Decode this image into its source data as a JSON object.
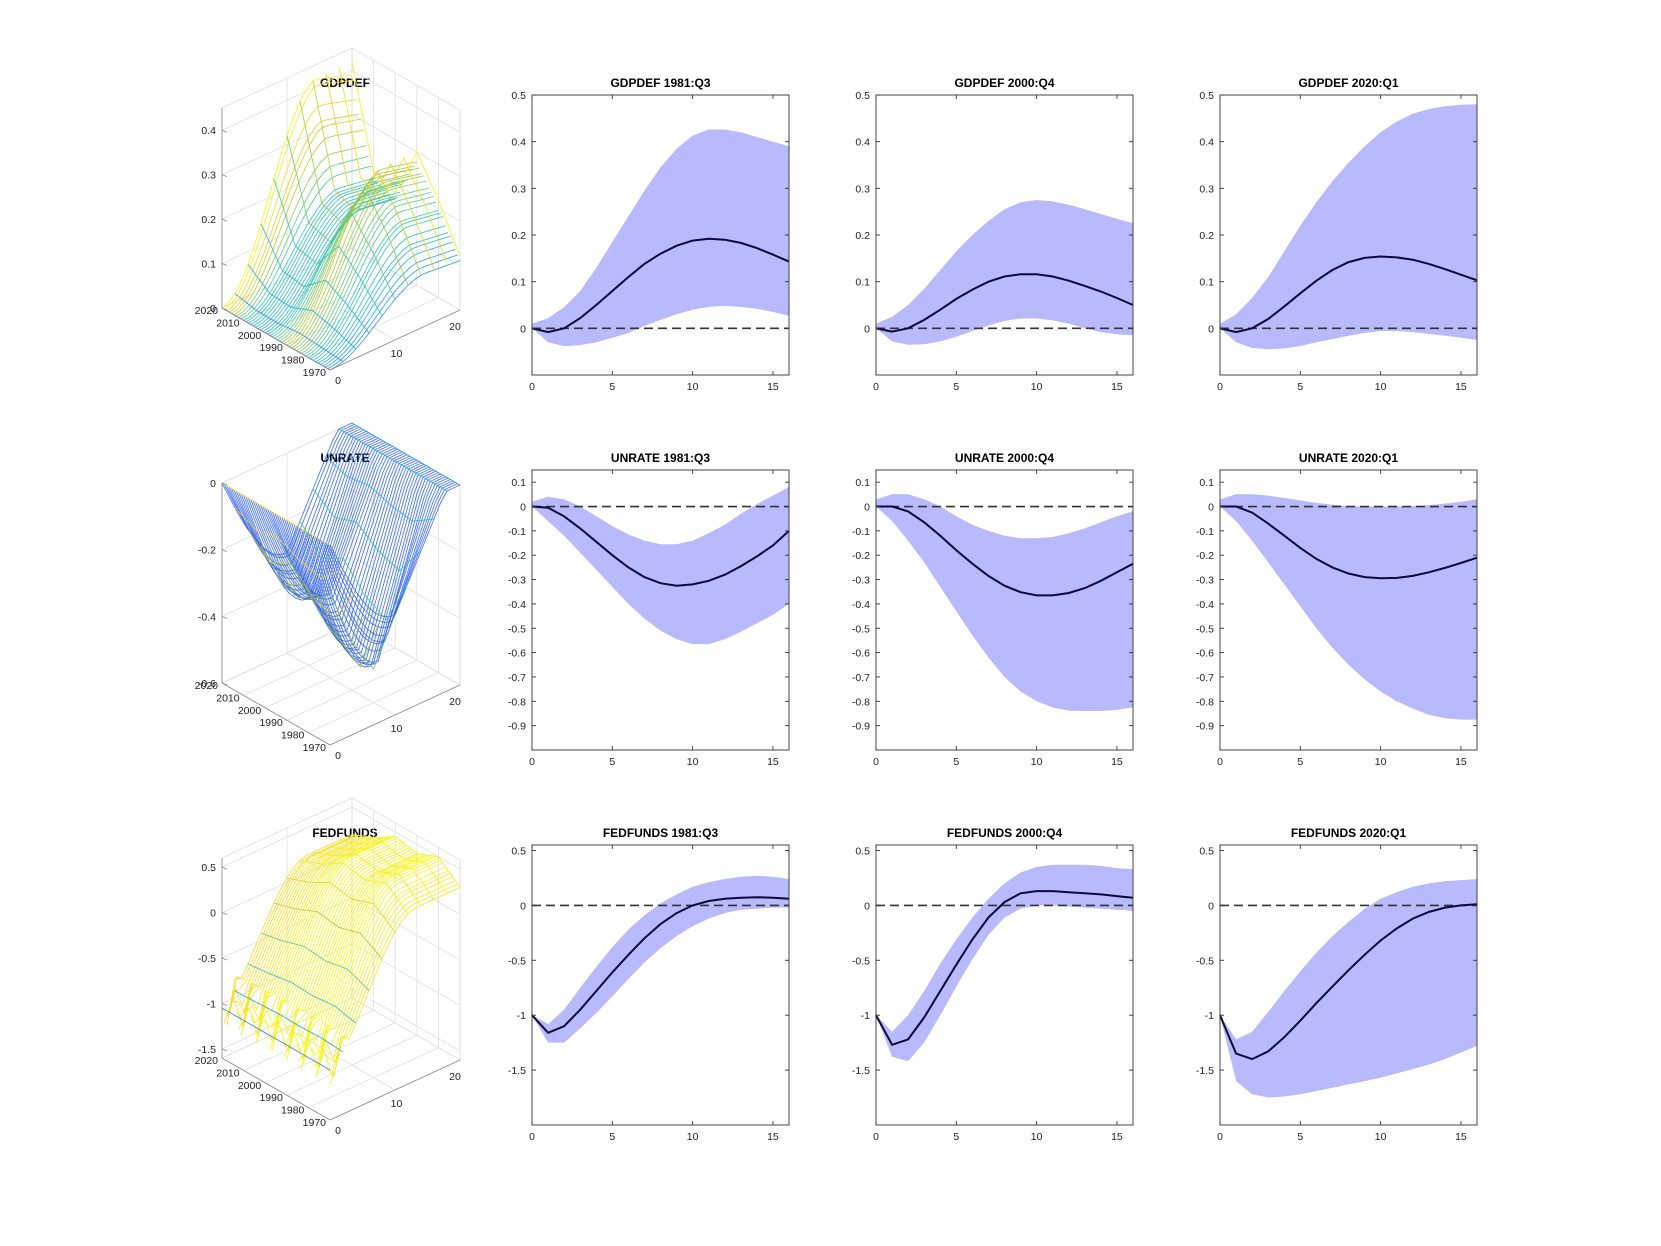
{
  "chart_data": [
    {
      "type": "surface",
      "panel": "3d",
      "title": "GDPDEF",
      "zticks": [
        "0",
        "0.1",
        "0.2",
        "0.3",
        "0.4"
      ],
      "zlim": [
        0,
        0.45
      ],
      "year_ticks": [
        "2020",
        "2010",
        "2000",
        "1990",
        "1980",
        "1970"
      ],
      "horizon_ticks": [
        "0",
        "10",
        "20"
      ],
      "description_peak_by_period": [
        0.12,
        0.22,
        0.3,
        0.18,
        0.2,
        0.42
      ]
    },
    {
      "type": "area",
      "title": "GDPDEF 1981:Q3",
      "x": [
        0,
        1,
        2,
        3,
        4,
        5,
        6,
        7,
        8,
        9,
        10,
        11,
        12,
        13,
        14,
        15,
        16
      ],
      "median": [
        0,
        -0.008,
        0.0,
        0.022,
        0.05,
        0.08,
        0.11,
        0.138,
        0.16,
        0.177,
        0.188,
        0.192,
        0.19,
        0.183,
        0.172,
        0.158,
        0.143
      ],
      "lower": [
        0,
        -0.03,
        -0.038,
        -0.036,
        -0.03,
        -0.02,
        -0.01,
        0.005,
        0.018,
        0.03,
        0.04,
        0.046,
        0.048,
        0.046,
        0.042,
        0.035,
        0.027
      ],
      "upper": [
        0.01,
        0.022,
        0.045,
        0.08,
        0.13,
        0.185,
        0.24,
        0.295,
        0.345,
        0.385,
        0.413,
        0.426,
        0.426,
        0.42,
        0.41,
        0.4,
        0.39
      ],
      "ylim": [
        -0.1,
        0.5
      ],
      "xlim": [
        0,
        16
      ],
      "yticks": [
        "0",
        "0.1",
        "0.2",
        "0.3",
        "0.4",
        "0.5"
      ],
      "xticks": [
        "0",
        "5",
        "10",
        "15"
      ]
    },
    {
      "type": "area",
      "title": "GDPDEF 2000:Q4",
      "x": [
        0,
        1,
        2,
        3,
        4,
        5,
        6,
        7,
        8,
        9,
        10,
        11,
        12,
        13,
        14,
        15,
        16
      ],
      "median": [
        0,
        -0.007,
        0.0,
        0.018,
        0.04,
        0.063,
        0.083,
        0.1,
        0.111,
        0.116,
        0.116,
        0.111,
        0.102,
        0.091,
        0.079,
        0.065,
        0.05
      ],
      "lower": [
        0,
        -0.028,
        -0.035,
        -0.034,
        -0.028,
        -0.018,
        -0.006,
        0.006,
        0.016,
        0.021,
        0.021,
        0.017,
        0.01,
        0.0,
        -0.008,
        -0.013,
        -0.015
      ],
      "upper": [
        0.01,
        0.025,
        0.05,
        0.085,
        0.125,
        0.165,
        0.2,
        0.23,
        0.255,
        0.27,
        0.275,
        0.272,
        0.265,
        0.255,
        0.245,
        0.235,
        0.225
      ],
      "ylim": [
        -0.1,
        0.5
      ],
      "xlim": [
        0,
        16
      ],
      "yticks": [
        "0",
        "0.1",
        "0.2",
        "0.3",
        "0.4",
        "0.5"
      ],
      "xticks": [
        "0",
        "5",
        "10",
        "15"
      ]
    },
    {
      "type": "area",
      "title": "GDPDEF 2020:Q1",
      "x": [
        0,
        1,
        2,
        3,
        4,
        5,
        6,
        7,
        8,
        9,
        10,
        11,
        12,
        13,
        14,
        15,
        16
      ],
      "median": [
        0,
        -0.008,
        0.0,
        0.02,
        0.047,
        0.075,
        0.102,
        0.125,
        0.142,
        0.151,
        0.154,
        0.152,
        0.147,
        0.138,
        0.127,
        0.115,
        0.103
      ],
      "lower": [
        0,
        -0.03,
        -0.042,
        -0.045,
        -0.043,
        -0.038,
        -0.03,
        -0.023,
        -0.016,
        -0.01,
        -0.006,
        -0.006,
        -0.008,
        -0.012,
        -0.016,
        -0.02,
        -0.025
      ],
      "upper": [
        0.01,
        0.03,
        0.065,
        0.11,
        0.165,
        0.22,
        0.27,
        0.315,
        0.355,
        0.39,
        0.42,
        0.443,
        0.46,
        0.47,
        0.476,
        0.479,
        0.48
      ],
      "ylim": [
        -0.1,
        0.5
      ],
      "xlim": [
        0,
        16
      ],
      "yticks": [
        "0",
        "0.1",
        "0.2",
        "0.3",
        "0.4",
        "0.5"
      ],
      "xticks": [
        "0",
        "5",
        "10",
        "15"
      ]
    },
    {
      "type": "surface",
      "panel": "3d",
      "title": "UNRATE",
      "zticks": [
        "-0.6",
        "-0.4",
        "-0.2",
        "0"
      ],
      "zlim": [
        -0.6,
        0
      ],
      "year_ticks": [
        "2020",
        "2010",
        "2000",
        "1990",
        "1980",
        "1970"
      ],
      "horizon_ticks": [
        "0",
        "10",
        "20"
      ],
      "description_peak_by_period": [
        -0.3,
        -0.5,
        -0.45,
        -0.35,
        -0.4,
        -0.3
      ]
    },
    {
      "type": "area",
      "title": "UNRATE 1981:Q3",
      "x": [
        0,
        1,
        2,
        3,
        4,
        5,
        6,
        7,
        8,
        9,
        10,
        11,
        12,
        13,
        14,
        15,
        16
      ],
      "median": [
        0,
        -0.005,
        -0.04,
        -0.09,
        -0.145,
        -0.2,
        -0.25,
        -0.29,
        -0.315,
        -0.325,
        -0.32,
        -0.305,
        -0.28,
        -0.245,
        -0.205,
        -0.16,
        -0.1
      ],
      "lower": [
        0,
        -0.06,
        -0.12,
        -0.19,
        -0.26,
        -0.33,
        -0.4,
        -0.46,
        -0.51,
        -0.545,
        -0.565,
        -0.565,
        -0.545,
        -0.515,
        -0.48,
        -0.445,
        -0.4
      ],
      "upper": [
        0.02,
        0.04,
        0.03,
        0.0,
        -0.04,
        -0.08,
        -0.115,
        -0.14,
        -0.155,
        -0.155,
        -0.14,
        -0.11,
        -0.075,
        -0.03,
        0.01,
        0.045,
        0.08
      ],
      "ylim": [
        -1.0,
        0.15
      ],
      "xlim": [
        0,
        16
      ],
      "yticks": [
        "0.1",
        "0",
        "-0.1",
        "-0.2",
        "-0.3",
        "-0.4",
        "-0.5",
        "-0.6",
        "-0.7",
        "-0.8",
        "-0.9"
      ],
      "xticks": [
        "0",
        "5",
        "10",
        "15"
      ]
    },
    {
      "type": "area",
      "title": "UNRATE 2000:Q4",
      "x": [
        0,
        1,
        2,
        3,
        4,
        5,
        6,
        7,
        8,
        9,
        10,
        11,
        12,
        13,
        14,
        15,
        16
      ],
      "median": [
        0,
        0.0,
        -0.02,
        -0.065,
        -0.12,
        -0.18,
        -0.235,
        -0.285,
        -0.325,
        -0.352,
        -0.365,
        -0.365,
        -0.355,
        -0.335,
        -0.305,
        -0.27,
        -0.235
      ],
      "lower": [
        0,
        -0.06,
        -0.14,
        -0.23,
        -0.33,
        -0.43,
        -0.53,
        -0.62,
        -0.7,
        -0.76,
        -0.8,
        -0.825,
        -0.838,
        -0.84,
        -0.84,
        -0.835,
        -0.825
      ],
      "upper": [
        0.03,
        0.05,
        0.05,
        0.03,
        0.0,
        -0.04,
        -0.075,
        -0.1,
        -0.12,
        -0.13,
        -0.13,
        -0.125,
        -0.11,
        -0.09,
        -0.065,
        -0.04,
        -0.02
      ],
      "ylim": [
        -1.0,
        0.15
      ],
      "xlim": [
        0,
        16
      ],
      "yticks": [
        "0.1",
        "0",
        "-0.1",
        "-0.2",
        "-0.3",
        "-0.4",
        "-0.5",
        "-0.6",
        "-0.7",
        "-0.8",
        "-0.9"
      ],
      "xticks": [
        "0",
        "5",
        "10",
        "15"
      ]
    },
    {
      "type": "area",
      "title": "UNRATE 2020:Q1",
      "x": [
        0,
        1,
        2,
        3,
        4,
        5,
        6,
        7,
        8,
        9,
        10,
        11,
        12,
        13,
        14,
        15,
        16
      ],
      "median": [
        0,
        0.0,
        -0.025,
        -0.07,
        -0.12,
        -0.17,
        -0.215,
        -0.25,
        -0.275,
        -0.29,
        -0.295,
        -0.293,
        -0.285,
        -0.27,
        -0.252,
        -0.232,
        -0.21
      ],
      "lower": [
        0,
        -0.06,
        -0.14,
        -0.23,
        -0.32,
        -0.41,
        -0.5,
        -0.58,
        -0.65,
        -0.71,
        -0.76,
        -0.8,
        -0.83,
        -0.855,
        -0.87,
        -0.875,
        -0.875
      ],
      "upper": [
        0.03,
        0.05,
        0.05,
        0.045,
        0.035,
        0.025,
        0.015,
        0.007,
        0.002,
        0.0,
        0.0,
        0.0,
        0.002,
        0.006,
        0.012,
        0.02,
        0.03
      ],
      "ylim": [
        -1.0,
        0.15
      ],
      "xlim": [
        0,
        16
      ],
      "yticks": [
        "0.1",
        "0",
        "-0.1",
        "-0.2",
        "-0.3",
        "-0.4",
        "-0.5",
        "-0.6",
        "-0.7",
        "-0.8",
        "-0.9"
      ],
      "xticks": [
        "0",
        "5",
        "10",
        "15"
      ]
    },
    {
      "type": "surface",
      "panel": "3d",
      "title": "FEDFUNDS",
      "zticks": [
        "-1.5",
        "-1",
        "-0.5",
        "0",
        "0.5"
      ],
      "zlim": [
        -1.6,
        0.6
      ],
      "year_ticks": [
        "2020",
        "2010",
        "2000",
        "1990",
        "1980",
        "1970"
      ],
      "horizon_ticks": [
        "0",
        "10",
        "20"
      ],
      "description_peak_by_period": [
        0.3,
        0.5,
        0.4,
        0.45,
        0.3,
        0.2
      ]
    },
    {
      "type": "area",
      "title": "FEDFUNDS 1981:Q3",
      "x": [
        0,
        1,
        2,
        3,
        4,
        5,
        6,
        7,
        8,
        9,
        10,
        11,
        12,
        13,
        14,
        15,
        16
      ],
      "median": [
        -1.0,
        -1.16,
        -1.1,
        -0.95,
        -0.78,
        -0.61,
        -0.45,
        -0.3,
        -0.17,
        -0.07,
        0.0,
        0.04,
        0.06,
        0.07,
        0.075,
        0.07,
        0.06
      ],
      "lower": [
        -1.0,
        -1.25,
        -1.25,
        -1.12,
        -0.98,
        -0.83,
        -0.67,
        -0.52,
        -0.39,
        -0.28,
        -0.19,
        -0.12,
        -0.07,
        -0.04,
        -0.03,
        -0.02,
        -0.02
      ],
      "upper": [
        -1.0,
        -1.08,
        -0.95,
        -0.75,
        -0.56,
        -0.38,
        -0.22,
        -0.09,
        0.02,
        0.1,
        0.17,
        0.21,
        0.24,
        0.26,
        0.27,
        0.26,
        0.24
      ],
      "ylim": [
        -2.0,
        0.55
      ],
      "xlim": [
        0,
        16
      ],
      "yticks": [
        "0.5",
        "0",
        "-0.5",
        "-1",
        "-1.5"
      ],
      "xticks": [
        "0",
        "5",
        "10",
        "15"
      ]
    },
    {
      "type": "area",
      "title": "FEDFUNDS 2000:Q4",
      "x": [
        0,
        1,
        2,
        3,
        4,
        5,
        6,
        7,
        8,
        9,
        10,
        11,
        12,
        13,
        14,
        15,
        16
      ],
      "median": [
        -1.0,
        -1.27,
        -1.22,
        -1.02,
        -0.78,
        -0.54,
        -0.31,
        -0.11,
        0.03,
        0.11,
        0.13,
        0.13,
        0.12,
        0.11,
        0.1,
        0.085,
        0.07
      ],
      "lower": [
        -1.0,
        -1.38,
        -1.42,
        -1.25,
        -1.0,
        -0.74,
        -0.49,
        -0.27,
        -0.11,
        -0.03,
        0.0,
        0.0,
        -0.01,
        -0.02,
        -0.03,
        -0.04,
        -0.05
      ],
      "upper": [
        -1.0,
        -1.15,
        -1.0,
        -0.78,
        -0.53,
        -0.31,
        -0.11,
        0.06,
        0.2,
        0.3,
        0.35,
        0.37,
        0.37,
        0.37,
        0.36,
        0.34,
        0.33
      ],
      "ylim": [
        -2.0,
        0.55
      ],
      "xlim": [
        0,
        16
      ],
      "yticks": [
        "0.5",
        "0",
        "-0.5",
        "-1",
        "-1.5"
      ],
      "xticks": [
        "0",
        "5",
        "10",
        "15"
      ]
    },
    {
      "type": "area",
      "title": "FEDFUNDS 2020:Q1",
      "x": [
        0,
        1,
        2,
        3,
        4,
        5,
        6,
        7,
        8,
        9,
        10,
        11,
        12,
        13,
        14,
        15,
        16
      ],
      "median": [
        -1.0,
        -1.35,
        -1.4,
        -1.33,
        -1.2,
        -1.05,
        -0.89,
        -0.74,
        -0.59,
        -0.45,
        -0.32,
        -0.21,
        -0.12,
        -0.06,
        -0.02,
        0.0,
        0.01
      ],
      "lower": [
        -1.0,
        -1.6,
        -1.72,
        -1.75,
        -1.74,
        -1.72,
        -1.69,
        -1.66,
        -1.63,
        -1.6,
        -1.57,
        -1.53,
        -1.49,
        -1.45,
        -1.4,
        -1.34,
        -1.28
      ],
      "upper": [
        -1.0,
        -1.22,
        -1.15,
        -0.97,
        -0.78,
        -0.6,
        -0.43,
        -0.28,
        -0.15,
        -0.03,
        0.06,
        0.12,
        0.17,
        0.2,
        0.22,
        0.23,
        0.24
      ],
      "ylim": [
        -2.0,
        0.55
      ],
      "xlim": [
        0,
        16
      ],
      "yticks": [
        "0.5",
        "0",
        "-0.5",
        "-1",
        "-1.5"
      ],
      "xticks": [
        "0",
        "5",
        "10",
        "15"
      ]
    }
  ]
}
